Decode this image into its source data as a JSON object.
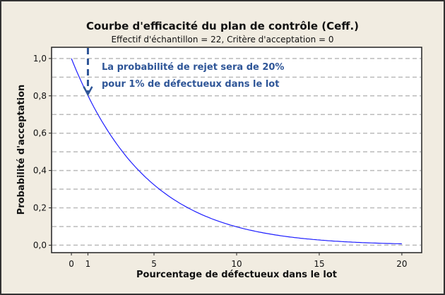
{
  "chart_data": {
    "type": "line",
    "title": "Courbe d'efficacité du plan de contrôle (Ceff.)",
    "subtitle": "Effectif d'échantillon = 22, Critère d'acceptation = 0",
    "xlabel": "Pourcentage de défectueux dans le lot",
    "ylabel": "Probabilité d'acceptation",
    "xlim": [
      -1.2,
      21.2
    ],
    "ylim": [
      -0.04,
      1.06
    ],
    "x_ticks": [
      0,
      1,
      5,
      10,
      15,
      20
    ],
    "x_tick_labels": [
      "0",
      "1",
      "5",
      "10",
      "15",
      "20"
    ],
    "y_ticks": [
      0,
      0.2,
      0.4,
      0.6,
      0.8,
      1.0
    ],
    "y_tick_labels": [
      "0,0",
      "0,2",
      "0,4",
      "0,6",
      "0,8",
      "1,0"
    ],
    "grid": "horizontal dashed every 0.1",
    "line_color": "#1f1fff",
    "x": [
      0,
      1,
      2,
      3,
      4,
      5,
      6,
      7,
      8,
      9,
      10,
      11,
      12,
      13,
      14,
      15,
      16,
      17,
      18,
      19,
      20
    ],
    "y": [
      1.0,
      0.8016,
      0.6412,
      0.5117,
      0.4072,
      0.3235,
      0.2564,
      0.2027,
      0.1597,
      0.1254,
      0.0985,
      0.077,
      0.06,
      0.0466,
      0.0361,
      0.0279,
      0.0214,
      0.0164,
      0.0125,
      0.0096,
      0.0074
    ],
    "annotation": {
      "lines": [
        "La probabilité de rejet sera de 20%",
        "pour 1% de défectueux dans le lot"
      ],
      "arrow_x": 1,
      "arrow_target_y": 0.8,
      "color": "#2e5597"
    }
  }
}
